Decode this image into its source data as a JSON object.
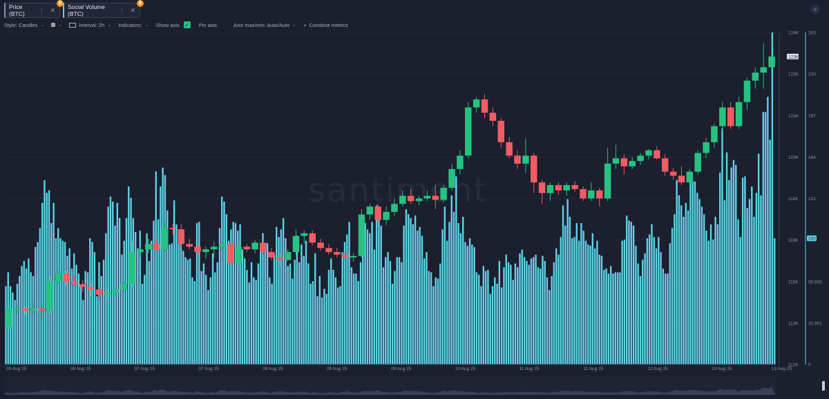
{
  "tabs": [
    {
      "label": "Price (BTC)",
      "color": "#8b93a8"
    },
    {
      "label": "Social Volume (BTC)",
      "color": "#5fd3e8"
    }
  ],
  "toolbar": {
    "style_label": "Style: Candles",
    "interval_label": "Interval: 2h",
    "indicators_label": "Indicators:",
    "show_axis_label": "Show axis",
    "pin_axis_label": "Pin axis",
    "axis_minmax_label": "Axis max/min: Auto/Auto",
    "combine_label": "Combine metrics"
  },
  "watermark": "santiment",
  "chart_data": {
    "type": "bar",
    "x_labels": [
      "05 Aug 25",
      "06 Aug 25",
      "07 Aug 25",
      "07 Aug 25",
      "08 Aug 25",
      "09 Aug 25",
      "09 Aug 25",
      "10 Aug 25",
      "11 Aug 25",
      "11 Aug 25",
      "12 Aug 25",
      "13 Aug 25",
      "13 Aug 25"
    ],
    "price_axis": {
      "ticks": [
        "124K",
        "123K",
        "121K",
        "120K",
        "118K",
        "116K",
        "115K",
        "113K",
        "112K"
      ],
      "current": "123K",
      "ylim": [
        111600,
        124000
      ]
    },
    "volume_axis": {
      "ticks": [
        "263",
        "230",
        "197",
        "164",
        "131",
        "100",
        "65.903",
        "32.951",
        "0"
      ],
      "current": "100",
      "ylim": [
        0,
        263
      ]
    },
    "colors": {
      "up": "#26c281",
      "down": "#f25c63",
      "volume": "#5fd3e8",
      "background": "#1b1f2e"
    },
    "series": [
      {
        "name": "Price (BTC)",
        "kind": "candles",
        "values": [
          [
            113000,
            113800,
            112900,
            113700
          ],
          [
            113700,
            113800,
            113500,
            113700
          ],
          [
            113700,
            113750,
            113450,
            113600
          ],
          [
            113600,
            113900,
            113500,
            113700
          ],
          [
            113700,
            113800,
            113300,
            113600
          ],
          [
            113600,
            114900,
            113500,
            114700
          ],
          [
            114700,
            115100,
            114600,
            115000
          ],
          [
            115000,
            115100,
            114550,
            114700
          ],
          [
            114700,
            114900,
            114500,
            114600
          ],
          [
            114600,
            114750,
            114300,
            114500
          ],
          [
            114500,
            114650,
            114150,
            114400
          ],
          [
            114400,
            114500,
            114000,
            114200
          ],
          [
            114200,
            114400,
            114050,
            114300
          ],
          [
            114300,
            114500,
            114100,
            114400
          ],
          [
            114400,
            114700,
            114300,
            114600
          ],
          [
            114600,
            116200,
            114500,
            115800
          ],
          [
            115800,
            116000,
            115600,
            115900
          ],
          [
            115900,
            116300,
            115750,
            116100
          ],
          [
            116100,
            116300,
            115800,
            115900
          ],
          [
            115900,
            116900,
            115800,
            116700
          ],
          [
            116700,
            116850,
            116450,
            116650
          ],
          [
            116650,
            116850,
            115950,
            116100
          ],
          [
            116100,
            116300,
            115900,
            116000
          ],
          [
            116000,
            116100,
            115700,
            115800
          ],
          [
            115800,
            116000,
            115550,
            115900
          ],
          [
            115900,
            116200,
            115600,
            116000
          ],
          [
            116000,
            116150,
            115850,
            116100
          ],
          [
            116100,
            116200,
            115350,
            115400
          ],
          [
            115400,
            116150,
            115300,
            116000
          ],
          [
            116000,
            116100,
            115800,
            115900
          ],
          [
            115900,
            116250,
            115750,
            116150
          ],
          [
            116150,
            116200,
            115700,
            115800
          ],
          [
            115800,
            115950,
            115500,
            115600
          ],
          [
            115600,
            115750,
            115300,
            115500
          ],
          [
            115500,
            115900,
            115450,
            115800
          ],
          [
            115800,
            116650,
            115700,
            116400
          ],
          [
            116400,
            116600,
            116100,
            116500
          ],
          [
            116500,
            116600,
            116050,
            116150
          ],
          [
            116150,
            116300,
            115850,
            115950
          ],
          [
            115950,
            116100,
            115700,
            115800
          ],
          [
            115800,
            115950,
            115600,
            115700
          ],
          [
            115700,
            115800,
            115500,
            115600
          ],
          [
            115600,
            115750,
            115450,
            115650
          ],
          [
            115650,
            117400,
            115600,
            117200
          ],
          [
            117200,
            117600,
            117000,
            117500
          ],
          [
            117500,
            117600,
            116900,
            117000
          ],
          [
            117000,
            117500,
            116800,
            117300
          ],
          [
            117300,
            117800,
            117150,
            117600
          ],
          [
            117600,
            118100,
            117500,
            117900
          ],
          [
            117900,
            118150,
            117600,
            117700
          ],
          [
            117700,
            117900,
            117550,
            117800
          ],
          [
            117800,
            118100,
            117700,
            117900
          ],
          [
            117900,
            118300,
            117400,
            117750
          ],
          [
            117750,
            118300,
            117650,
            118200
          ],
          [
            118200,
            119100,
            118100,
            118900
          ],
          [
            118900,
            119600,
            118700,
            119400
          ],
          [
            119400,
            121400,
            119300,
            121200
          ],
          [
            121200,
            121600,
            121000,
            121500
          ],
          [
            121500,
            121700,
            120800,
            121000
          ],
          [
            121000,
            121200,
            120500,
            120700
          ],
          [
            120700,
            120800,
            119700,
            119900
          ],
          [
            119900,
            120100,
            119300,
            119400
          ],
          [
            119400,
            119600,
            118900,
            119100
          ],
          [
            119100,
            120050,
            118750,
            119400
          ],
          [
            119400,
            119500,
            118000,
            118400
          ],
          [
            118400,
            118500,
            117600,
            118000
          ],
          [
            118000,
            118400,
            117700,
            118300
          ],
          [
            118300,
            118400,
            117950,
            118100
          ],
          [
            118100,
            118400,
            117900,
            118300
          ],
          [
            118300,
            118450,
            118050,
            118150
          ],
          [
            118150,
            118250,
            117700,
            117800
          ],
          [
            117800,
            118400,
            117700,
            118100
          ],
          [
            118100,
            118200,
            117500,
            117800
          ],
          [
            117800,
            119700,
            117700,
            119100
          ],
          [
            119100,
            119800,
            118900,
            119300
          ],
          [
            119300,
            119450,
            118700,
            119000
          ],
          [
            119000,
            119350,
            118900,
            119200
          ],
          [
            119200,
            119500,
            119050,
            119400
          ],
          [
            119400,
            119650,
            119250,
            119600
          ],
          [
            119600,
            119750,
            119250,
            119300
          ],
          [
            119300,
            119450,
            118650,
            118800
          ],
          [
            118800,
            118950,
            118500,
            118650
          ],
          [
            118650,
            119000,
            118300,
            118400
          ],
          [
            118400,
            118900,
            118300,
            118800
          ],
          [
            118800,
            119600,
            118700,
            119500
          ],
          [
            119500,
            120050,
            119300,
            119900
          ],
          [
            119900,
            120600,
            119700,
            120500
          ],
          [
            120500,
            121400,
            120300,
            121200
          ],
          [
            121200,
            121400,
            120400,
            120500
          ],
          [
            120500,
            121600,
            120400,
            121400
          ],
          [
            121400,
            122300,
            121100,
            122200
          ],
          [
            122200,
            122700,
            121900,
            122500
          ],
          [
            122500,
            123600,
            121900,
            122700
          ],
          [
            122700,
            123800,
            122600,
            123100
          ]
        ]
      },
      {
        "name": "Social Volume (BTC)",
        "kind": "bars",
        "values": [
          62,
          73,
          62,
          57,
          51,
          64,
          70,
          78,
          82,
          76,
          84,
          73,
          70,
          93,
          97,
          108,
          128,
          146,
          136,
          138,
          112,
          128,
          100,
          108,
          100,
          98,
          97,
          86,
          92,
          76,
          88,
          79,
          72,
          62,
          51,
          74,
          73,
          100,
          97,
          89,
          54,
          81,
          70,
          83,
          104,
          125,
          133,
          129,
          110,
          128,
          116,
          87,
          98,
          116,
          141,
          132,
          116,
          105,
          92,
          106,
          64,
          71,
          104,
          82,
          98,
          114,
          153,
          115,
          141,
          156,
          150,
          122,
          95,
          96,
          130,
          111,
          106,
          103,
          90,
          85,
          83,
          84,
          69,
          66,
          112,
          113,
          74,
          80,
          71,
          59,
          69,
          88,
          73,
          81,
          108,
          133,
          129,
          119,
          98,
          107,
          113,
          112,
          106,
          111,
          91,
          84,
          75,
          65,
          81,
          69,
          67,
          80,
          95,
          104,
          94,
          96,
          69,
          64,
          87,
          109,
          101,
          107,
          116,
          100,
          78,
          80,
          68,
          83,
          102,
          81,
          95,
          86,
          98,
          80,
          64,
          66,
          88,
          54,
          70,
          53,
          60,
          56,
          75,
          84,
          75,
          69,
          61,
          62,
          89,
          97,
          103,
          113,
          77,
          72,
          72,
          66,
          81,
          99,
          112,
          107,
          104,
          113,
          91,
          126,
          122,
          110,
          77,
          85,
          89,
          82,
          64,
          74,
          85,
          85,
          81,
          110,
          123,
          119,
          116,
          111,
          118,
          106,
          109,
          102,
          84,
          89,
          74,
          73,
          62,
          69,
          68,
          80,
          107,
          125,
          98,
          113,
          134,
          121,
          149,
          112,
          104,
          117,
          97,
          94,
          100,
          95,
          93,
          73,
          71,
          62,
          78,
          74,
          75,
          56,
          62,
          69,
          64,
          82,
          61,
          77,
          87,
          81,
          79,
          67,
          80,
          77,
          88,
          91,
          85,
          82,
          79,
          84,
          85,
          87,
          77,
          76,
          86,
          82,
          69,
          59,
          70,
          81,
          92,
          87,
          101,
          126,
          110,
          131,
          117,
          100,
          101,
          112,
          98,
          112,
          106,
          98,
          95,
          94,
          104,
          92,
          98,
          87,
          86,
          75,
          76,
          72,
          78,
          72,
          73,
          73,
          73,
          98,
          99,
          118,
          114,
          113,
          110,
          94,
          80,
          70,
          83,
          88,
          100,
          103,
          111,
          101,
          92,
          101,
          89,
          76,
          72,
          72,
          96,
          108,
          119,
          146,
          134,
          126,
          117,
          128,
          122,
          145,
          145,
          145,
          136,
          131,
          125,
          119,
          106,
          98,
          111,
          99,
          117,
          111,
          152,
          187,
          130,
          168,
          146,
          156,
          162,
          158,
          115,
          101,
          148,
          149,
          124,
          131,
          141,
          117,
          136,
          167,
          134,
          200,
          200,
          212,
          178,
          263,
          100
        ]
      }
    ]
  }
}
